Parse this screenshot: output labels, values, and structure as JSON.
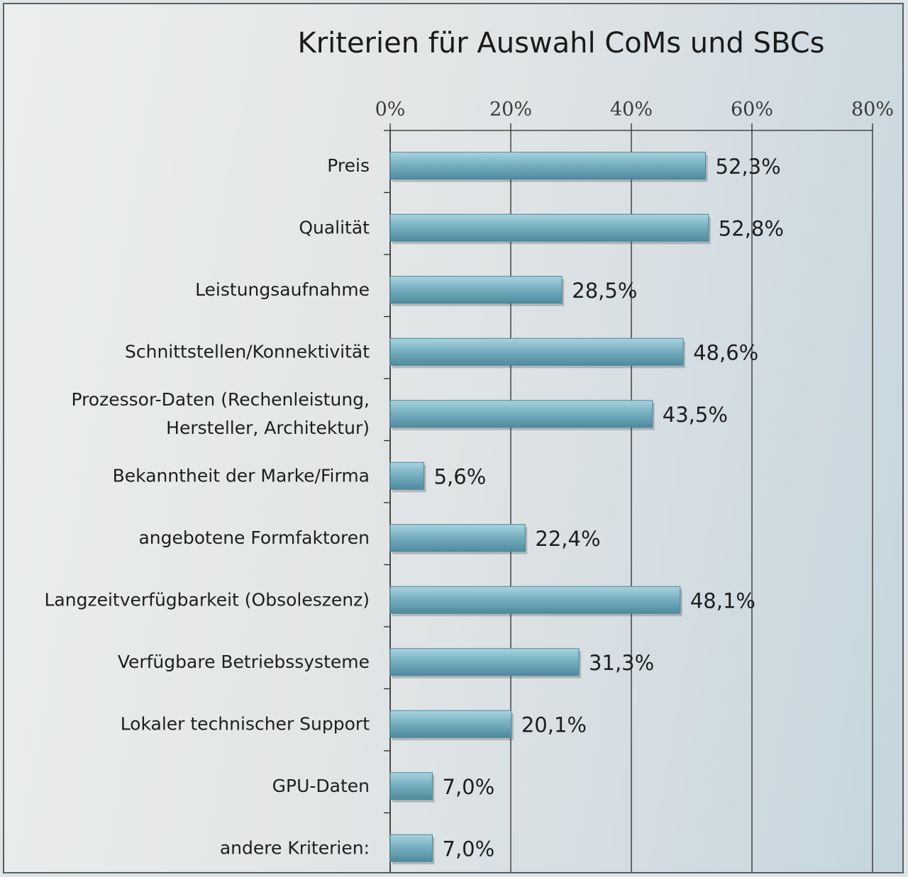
{
  "chart_data": {
    "type": "bar",
    "orientation": "horizontal",
    "title": "Kriterien für Auswahl CoMs und SBCs",
    "xlabel": "",
    "ylabel": "",
    "xlim": [
      0,
      80
    ],
    "x_ticks": [
      "0%",
      "20%",
      "40%",
      "60%",
      "80%"
    ],
    "x_tick_values": [
      0,
      20,
      40,
      60,
      80
    ],
    "categories": [
      [
        "Preis"
      ],
      [
        "Qualität"
      ],
      [
        "Leistungsaufnahme"
      ],
      [
        "Schnittstellen/Konnektivität"
      ],
      [
        "Prozessor-Daten (Rechenleistung,",
        "Hersteller, Architektur)"
      ],
      [
        "Bekanntheit der Marke/Firma"
      ],
      [
        "angebotene Formfaktoren"
      ],
      [
        "Langzeitverfügbarkeit (Obsoleszenz)"
      ],
      [
        "Verfügbare Betriebssysteme"
      ],
      [
        "Lokaler technischer Support"
      ],
      [
        "GPU-Daten"
      ],
      [
        "andere Kriterien:"
      ]
    ],
    "values": [
      52.3,
      52.8,
      28.5,
      48.6,
      43.5,
      5.6,
      22.4,
      48.1,
      31.3,
      20.1,
      7.0,
      7.0
    ],
    "value_labels": [
      "52,3%",
      "52,8%",
      "28,5%",
      "48,6%",
      "43,5%",
      "5,6%",
      "22,4%",
      "48,1%",
      "31,3%",
      "20,1%",
      "7,0%",
      "7,0%"
    ],
    "bar_color": "#6fa7b8",
    "grid": true,
    "legend": "none"
  }
}
